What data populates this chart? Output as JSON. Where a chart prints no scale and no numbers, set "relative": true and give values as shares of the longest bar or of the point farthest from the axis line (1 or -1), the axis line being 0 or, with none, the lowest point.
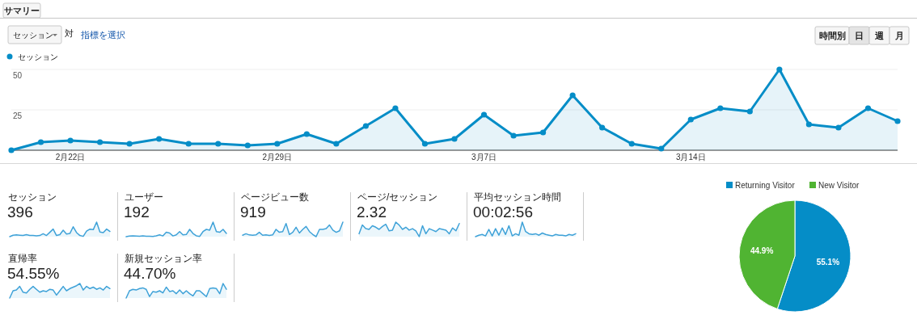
{
  "chart_data": [
    {
      "type": "area",
      "marker": "circle",
      "legend": "top left",
      "grid": "y",
      "annotations": [
        "サマリー",
        "セッション",
        "対",
        "指標を選択",
        "時間別",
        "日",
        "週",
        "月"
      ],
      "categories": [
        null,
        null,
        "2月22日",
        null,
        null,
        null,
        null,
        null,
        null,
        "2月29日",
        null,
        null,
        null,
        null,
        null,
        null,
        "3月7日",
        null,
        null,
        null,
        null,
        null,
        null,
        "3月14日",
        null,
        null,
        null,
        null,
        null,
        null,
        null
      ],
      "ylim": [
        0,
        50
      ],
      "yticks": [
        25,
        50
      ],
      "series": [
        {
          "name": "セッション",
          "color": "#058dc7",
          "values": [
            0,
            5,
            6,
            5,
            4,
            7,
            4,
            4,
            3,
            4,
            10,
            4,
            15,
            26,
            4,
            7,
            22,
            9,
            11,
            34,
            14,
            4,
            1,
            19,
            26,
            24,
            50,
            16,
            14,
            26,
            18
          ]
        }
      ]
    },
    {
      "type": "area",
      "relative": true,
      "title": "セッション",
      "subtitle": "396",
      "categories": [
        null,
        null,
        null,
        null,
        null,
        null,
        null,
        null,
        null,
        null,
        null,
        null,
        null,
        null,
        null,
        null,
        null,
        null,
        null,
        null,
        null,
        null,
        null,
        null,
        null,
        null,
        null,
        null,
        null,
        null,
        null
      ],
      "series": [
        {
          "color": "#3fa2d8",
          "values": [
            0,
            0.1,
            0.12,
            0.1,
            0.08,
            0.14,
            0.08,
            0.08,
            0.06,
            0.08,
            0.2,
            0.08,
            0.3,
            0.52,
            0.08,
            0.14,
            0.44,
            0.18,
            0.22,
            0.68,
            0.28,
            0.08,
            0.02,
            0.38,
            0.52,
            0.48,
            1,
            0.32,
            0.28,
            0.52,
            0.36
          ]
        }
      ]
    },
    {
      "type": "area",
      "relative": true,
      "title": "ユーザー",
      "subtitle": "192",
      "categories": [
        null,
        null,
        null,
        null,
        null,
        null,
        null,
        null,
        null,
        null,
        null,
        null,
        null,
        null,
        null,
        null,
        null,
        null,
        null,
        null,
        null,
        null,
        null,
        null,
        null,
        null,
        null,
        null,
        null,
        null,
        null
      ],
      "series": [
        {
          "color": "#3fa2d8",
          "values": [
            0,
            0.04,
            0.05,
            0.04,
            0.03,
            0.06,
            0.03,
            0.03,
            0.02,
            0.06,
            0.12,
            0.05,
            0.3,
            0.25,
            0.05,
            0.12,
            0.35,
            0.12,
            0.15,
            0.5,
            0.22,
            0.06,
            0.02,
            0.35,
            0.5,
            0.45,
            1,
            0.35,
            0.3,
            0.5,
            0.22
          ]
        }
      ]
    },
    {
      "type": "area",
      "relative": true,
      "title": "ページビュー数",
      "subtitle": "919",
      "categories": [
        null,
        null,
        null,
        null,
        null,
        null,
        null,
        null,
        null,
        null,
        null,
        null,
        null,
        null,
        null,
        null,
        null,
        null,
        null,
        null,
        null,
        null,
        null,
        null,
        null,
        null,
        null,
        null,
        null,
        null,
        null
      ],
      "series": [
        {
          "color": "#3fa2d8",
          "values": [
            0.1,
            0.2,
            0.12,
            0.1,
            0.12,
            0.3,
            0.1,
            0.12,
            0.08,
            0.12,
            0.5,
            0.3,
            0.35,
            0.9,
            0.15,
            0.3,
            0.65,
            0.25,
            0.5,
            0.7,
            0.35,
            0.15,
            0,
            0.5,
            0.5,
            0.55,
            0.8,
            0.45,
            0.3,
            0.4,
            1
          ]
        }
      ]
    },
    {
      "type": "area",
      "relative": true,
      "title": "ページ/セッション",
      "subtitle": "2.32",
      "categories": [
        null,
        null,
        null,
        null,
        null,
        null,
        null,
        null,
        null,
        null,
        null,
        null,
        null,
        null,
        null,
        null,
        null,
        null,
        null,
        null,
        null,
        null,
        null,
        null,
        null,
        null,
        null,
        null,
        null,
        null,
        null
      ],
      "series": [
        {
          "color": "#3fa2d8",
          "values": [
            0.2,
            0.8,
            0.55,
            0.5,
            0.75,
            0.65,
            0.5,
            0.7,
            0.85,
            0.4,
            0.45,
            1,
            0.8,
            0.5,
            0.65,
            0.45,
            0.55,
            0.4,
            0,
            0.75,
            0.2,
            0.55,
            0.45,
            0.35,
            0.55,
            0.5,
            0.45,
            0.2,
            0.6,
            0.4,
            0.9
          ]
        }
      ]
    },
    {
      "type": "area",
      "relative": true,
      "title": "平均セッション時間",
      "subtitle": "00:02:56",
      "categories": [
        null,
        null,
        null,
        null,
        null,
        null,
        null,
        null,
        null,
        null,
        null,
        null,
        null,
        null,
        null,
        null,
        null,
        null,
        null,
        null,
        null,
        null,
        null,
        null,
        null,
        null,
        null,
        null,
        null,
        null,
        null
      ],
      "series": [
        {
          "color": "#3fa2d8",
          "values": [
            0,
            0.1,
            0.15,
            0.05,
            0.5,
            0.05,
            0.55,
            0.1,
            0.6,
            0.15,
            0.75,
            0.05,
            0.2,
            0.1,
            1,
            0.35,
            0.2,
            0.15,
            0.2,
            0.1,
            0.25,
            0.15,
            0.1,
            0.05,
            0.15,
            0.1,
            0.1,
            0.05,
            0.15,
            0.1,
            0.2
          ]
        }
      ]
    },
    {
      "type": "area",
      "relative": true,
      "title": "直帰率",
      "subtitle": "54.55%",
      "categories": [
        null,
        null,
        null,
        null,
        null,
        null,
        null,
        null,
        null,
        null,
        null,
        null,
        null,
        null,
        null,
        null,
        null,
        null,
        null,
        null,
        null,
        null,
        null,
        null,
        null,
        null,
        null,
        null,
        null,
        null,
        null
      ],
      "series": [
        {
          "color": "#3fa2d8",
          "values": [
            0,
            0.5,
            0.55,
            0.8,
            0.4,
            0.35,
            0.6,
            0.8,
            0.6,
            0.4,
            0.5,
            0.45,
            0.6,
            0.55,
            0.2,
            0.5,
            0.8,
            0.5,
            0.65,
            0.75,
            0.85,
            1,
            0.55,
            0.8,
            0.65,
            0.75,
            0.6,
            0.7,
            0.55,
            0.8,
            0.65
          ]
        }
      ]
    },
    {
      "type": "area",
      "relative": true,
      "title": "新規セッション率",
      "subtitle": "44.70%",
      "categories": [
        null,
        null,
        null,
        null,
        null,
        null,
        null,
        null,
        null,
        null,
        null,
        null,
        null,
        null,
        null,
        null,
        null,
        null,
        null,
        null,
        null,
        null,
        null,
        null,
        null,
        null,
        null,
        null,
        null,
        null,
        null
      ],
      "series": [
        {
          "color": "#3fa2d8",
          "values": [
            0,
            0.5,
            0.6,
            0.55,
            0.65,
            0.7,
            0.6,
            0.1,
            0.45,
            0.4,
            0.5,
            0.35,
            0.75,
            0.45,
            0.5,
            0.3,
            0.55,
            0.3,
            0.5,
            0.3,
            0.15,
            0.5,
            0.5,
            0.3,
            0.1,
            0.65,
            0.7,
            0.65,
            0.3,
            1,
            0.6
          ]
        }
      ]
    },
    {
      "type": "pie",
      "legend": "top",
      "categories": [
        "Returning Visitor",
        "New Visitor"
      ],
      "values": [
        55.1,
        44.9
      ],
      "colors": [
        "#058dc7",
        "#50b432"
      ],
      "value_labels": [
        "55.1%",
        "44.9%"
      ]
    }
  ]
}
